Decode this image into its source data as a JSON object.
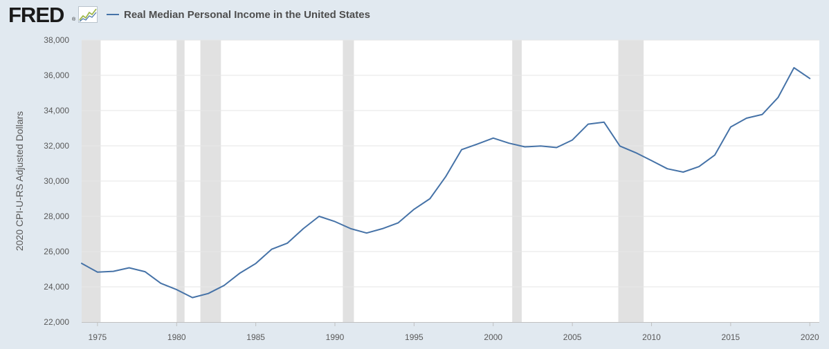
{
  "brand": {
    "logo_text": "FRED",
    "registered": "®",
    "logo_icon": "trend-graph-icon"
  },
  "colors": {
    "background": "#e1e9f0",
    "plot_background": "#ffffff",
    "series": "#4572a7",
    "recession": "#e1e1e1",
    "gridline": "#e6e6e6"
  },
  "chart_data": {
    "type": "line",
    "title": "",
    "ylabel": "2020 CPI-U-RS Adjusted Dollars",
    "xlabel": "",
    "xlim": [
      1974,
      2020.6
    ],
    "ylim": [
      22000,
      38000
    ],
    "grid": true,
    "legend_position": "top-left",
    "x_ticks": [
      1975,
      1980,
      1985,
      1990,
      1995,
      2000,
      2005,
      2010,
      2015,
      2020
    ],
    "x_tick_labels": [
      "1975",
      "1980",
      "1985",
      "1990",
      "1995",
      "2000",
      "2005",
      "2010",
      "2015",
      "2020"
    ],
    "y_ticks": [
      22000,
      24000,
      26000,
      28000,
      30000,
      32000,
      34000,
      36000,
      38000
    ],
    "y_tick_labels": [
      "22,000",
      "24,000",
      "26,000",
      "28,000",
      "30,000",
      "32,000",
      "34,000",
      "36,000",
      "38,000"
    ],
    "recessions": [
      {
        "start": 1974,
        "end": 1975.2
      },
      {
        "start": 1980.0,
        "end": 1980.5
      },
      {
        "start": 1981.5,
        "end": 1982.8
      },
      {
        "start": 1990.5,
        "end": 1991.2
      },
      {
        "start": 2001.2,
        "end": 2001.8
      },
      {
        "start": 2007.9,
        "end": 2009.5
      }
    ],
    "series": [
      {
        "name": "Real Median Personal Income in the United States",
        "x": [
          1974,
          1975,
          1976,
          1977,
          1978,
          1979,
          1980,
          1981,
          1982,
          1983,
          1984,
          1985,
          1986,
          1987,
          1988,
          1989,
          1990,
          1991,
          1992,
          1993,
          1994,
          1995,
          1996,
          1997,
          1998,
          1999,
          2000,
          2001,
          2002,
          2003,
          2004,
          2005,
          2006,
          2007,
          2008,
          2009,
          2010,
          2011,
          2012,
          2013,
          2014,
          2015,
          2016,
          2017,
          2018,
          2019,
          2020
        ],
        "values": [
          25330,
          24830,
          24880,
          25080,
          24860,
          24200,
          23840,
          23390,
          23620,
          24080,
          24780,
          25320,
          26130,
          26480,
          27300,
          28000,
          27700,
          27300,
          27050,
          27300,
          27630,
          28400,
          29000,
          30250,
          31780,
          32100,
          32440,
          32150,
          31940,
          31990,
          31900,
          32330,
          33230,
          33340,
          31990,
          31610,
          31160,
          30700,
          30510,
          30820,
          31480,
          33070,
          33570,
          33780,
          34750,
          36430,
          35820
        ]
      }
    ]
  }
}
